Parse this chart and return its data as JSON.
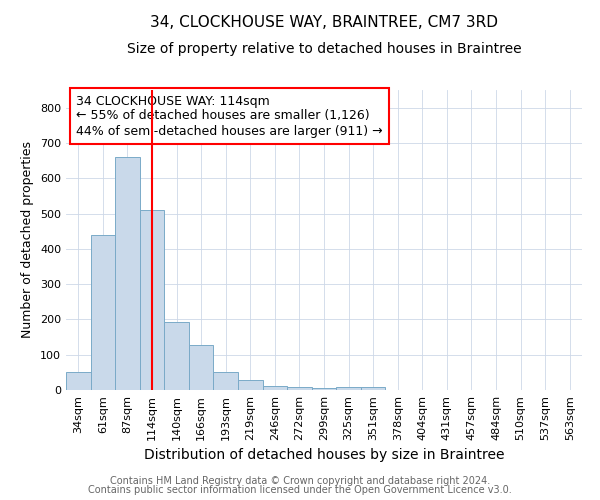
{
  "title": "34, CLOCKHOUSE WAY, BRAINTREE, CM7 3RD",
  "subtitle": "Size of property relative to detached houses in Braintree",
  "xlabel": "Distribution of detached houses by size in Braintree",
  "ylabel": "Number of detached properties",
  "footnote1": "Contains HM Land Registry data © Crown copyright and database right 2024.",
  "footnote2": "Contains public sector information licensed under the Open Government Licence v3.0.",
  "categories": [
    "34sqm",
    "61sqm",
    "87sqm",
    "114sqm",
    "140sqm",
    "166sqm",
    "193sqm",
    "219sqm",
    "246sqm",
    "272sqm",
    "299sqm",
    "325sqm",
    "351sqm",
    "378sqm",
    "404sqm",
    "431sqm",
    "457sqm",
    "484sqm",
    "510sqm",
    "537sqm",
    "563sqm"
  ],
  "values": [
    50,
    440,
    660,
    510,
    193,
    127,
    50,
    27,
    10,
    8,
    5,
    8,
    8,
    0,
    0,
    0,
    0,
    0,
    0,
    0,
    0
  ],
  "bar_color": "#c9d9ea",
  "bar_edge_color": "#7aaac8",
  "vline_x_index": 3,
  "vline_color": "red",
  "annotation_title": "34 CLOCKHOUSE WAY: 114sqm",
  "annotation_line1": "← 55% of detached houses are smaller (1,126)",
  "annotation_line2": "44% of semi-detached houses are larger (911) →",
  "annotation_box_color": "white",
  "annotation_box_edge_color": "red",
  "ylim": [
    0,
    850
  ],
  "yticks": [
    0,
    100,
    200,
    300,
    400,
    500,
    600,
    700,
    800
  ],
  "title_fontsize": 11,
  "subtitle_fontsize": 10,
  "xlabel_fontsize": 10,
  "ylabel_fontsize": 9,
  "tick_fontsize": 8,
  "annotation_fontsize": 9,
  "footnote_fontsize": 7
}
